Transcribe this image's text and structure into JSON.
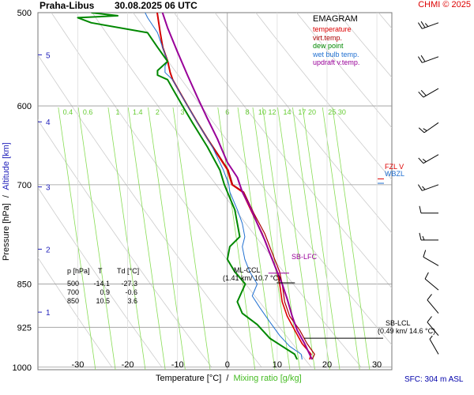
{
  "header": {
    "station": "Praha-Libus",
    "datetime": "30.08.2025 06 UTC",
    "credit": "CHMI © 2025"
  },
  "legend": {
    "title": "EMAGRAM",
    "items": [
      {
        "label": "temperature",
        "color": "#dd0000"
      },
      {
        "label": "virt.temp.",
        "color": "#aa0000"
      },
      {
        "label": "dew point",
        "color": "#008800"
      },
      {
        "label": "wet bulb temp.",
        "color": "#1f6fd1"
      },
      {
        "label": "updraft v.temp.",
        "color": "#990099"
      }
    ]
  },
  "axes": {
    "x_label_a": "Temperature [°C]",
    "x_sep": "/",
    "x_label_b": "Mixing ratio [g/kg]",
    "y_label_a": "Pressure [hPa]",
    "y_sep": "/",
    "y_label_b": "Altitude [km]",
    "sfc": "SFC: 304 m ASL"
  },
  "table": {
    "headers": [
      "p [hPa]",
      "T",
      "Td [°C]"
    ],
    "rows": [
      [
        "500",
        "-14.1",
        "-27.3"
      ],
      [
        "700",
        "0.9",
        "-0.6"
      ],
      [
        "850",
        "10.5",
        "3.6"
      ]
    ]
  },
  "annotations": {
    "fzl": "FZL V",
    "wbzl": "WBZL",
    "sb_lfc": "SB-LFC",
    "ml_ccl": "ML-CCL",
    "ml_ccl_detail": "(1.41 km/ 10.7 °C)",
    "sb_lcl": "SB-LCL",
    "sb_lcl_detail": "(0.49 km/ 14.6 °C)"
  },
  "chart_data": {
    "type": "line",
    "title": "Praha-Libus 30.08.2025 06 UTC",
    "xlabel": "Temperature [°C] / Mixing ratio [g/kg]",
    "ylabel": "Pressure [hPa] / Altitude [km]",
    "xlim": [
      -38,
      33
    ],
    "pressure_range_hpa": [
      1005,
      500
    ],
    "y_scale": "log",
    "grid": true,
    "legend_position": "top-right",
    "x_ticks": [
      -30,
      -20,
      -10,
      0,
      10,
      20,
      30
    ],
    "pressure_ticks": [
      500,
      600,
      700,
      850,
      925,
      1000
    ],
    "altitude_ticks_km": [
      {
        "km": "1",
        "p": 898
      },
      {
        "km": "2",
        "p": 794
      },
      {
        "km": "3",
        "p": 703
      },
      {
        "km": "4",
        "p": 619
      },
      {
        "km": "5",
        "p": 543
      }
    ],
    "mixing_ratio_labels_gkg": [
      "0.4",
      "0.6",
      "1",
      "1.4",
      "2",
      "3",
      "6",
      "8",
      "10",
      "12",
      "14",
      "17",
      "20",
      "25",
      "30"
    ],
    "mixing_ratio_label_x_c": [
      -32,
      -28,
      -22,
      -18,
      -14,
      -9,
      0,
      4,
      7,
      9,
      12,
      15,
      17,
      21,
      23
    ],
    "series": [
      {
        "name": "temperature",
        "color": "#dd0000",
        "points": [
          [
            16.5,
            985
          ],
          [
            16.8,
            975
          ],
          [
            15,
            955
          ],
          [
            13.5,
            930
          ],
          [
            12,
            905
          ],
          [
            11,
            880
          ],
          [
            10.5,
            850
          ],
          [
            10,
            830
          ],
          [
            8.5,
            800
          ],
          [
            7,
            770
          ],
          [
            5,
            740
          ],
          [
            3,
            710
          ],
          [
            0.9,
            700
          ],
          [
            0,
            680
          ],
          [
            -2,
            660
          ],
          [
            -4,
            640
          ],
          [
            -6,
            620
          ],
          [
            -8,
            600
          ],
          [
            -10,
            580
          ],
          [
            -11,
            570
          ],
          [
            -11.5,
            562
          ],
          [
            -12,
            550
          ],
          [
            -13,
            535
          ],
          [
            -13.5,
            520
          ],
          [
            -14.1,
            500
          ]
        ]
      },
      {
        "name": "virt.temp.",
        "color": "#aa0000",
        "points": [
          [
            17,
            985
          ],
          [
            17.5,
            975
          ],
          [
            16,
            955
          ],
          [
            14.5,
            930
          ],
          [
            12.5,
            905
          ],
          [
            11.5,
            880
          ],
          [
            11,
            850
          ],
          [
            10.5,
            830
          ],
          [
            9,
            800
          ],
          [
            7.5,
            770
          ],
          [
            5.3,
            740
          ],
          [
            3.3,
            710
          ],
          [
            1.1,
            700
          ],
          [
            0.2,
            680
          ],
          [
            -1.8,
            660
          ],
          [
            -3.9,
            640
          ],
          [
            -5.9,
            620
          ],
          [
            -7.9,
            600
          ],
          [
            -9.9,
            580
          ],
          [
            -10.9,
            570
          ],
          [
            -11.4,
            562
          ],
          [
            -11.9,
            550
          ],
          [
            -12.9,
            535
          ],
          [
            -13.4,
            520
          ],
          [
            -14,
            500
          ]
        ]
      },
      {
        "name": "dew point",
        "color": "#008800",
        "points": [
          [
            14,
            985
          ],
          [
            13.5,
            975
          ],
          [
            11,
            960
          ],
          [
            8.5,
            945
          ],
          [
            6,
            920
          ],
          [
            3,
            900
          ],
          [
            2,
            880
          ],
          [
            3.6,
            850
          ],
          [
            1.5,
            830
          ],
          [
            0,
            810
          ],
          [
            0.5,
            790
          ],
          [
            2.5,
            775
          ],
          [
            2,
            755
          ],
          [
            1.5,
            735
          ],
          [
            0,
            710
          ],
          [
            -0.6,
            700
          ],
          [
            -1.5,
            680
          ],
          [
            -4,
            650
          ],
          [
            -7,
            620
          ],
          [
            -9,
            600
          ],
          [
            -11,
            580
          ],
          [
            -12,
            570
          ],
          [
            -14,
            565
          ],
          [
            -14,
            560
          ],
          [
            -12,
            550
          ],
          [
            -14,
            535
          ],
          [
            -16,
            520
          ],
          [
            -27.3,
            510
          ],
          [
            -30,
            505
          ],
          [
            -22,
            503
          ],
          [
            -27.3,
            500
          ]
        ]
      },
      {
        "name": "wet bulb temp.",
        "color": "#1f6fd1",
        "points": [
          [
            15,
            985
          ],
          [
            14.8,
            975
          ],
          [
            12.5,
            960
          ],
          [
            10.5,
            940
          ],
          [
            8.5,
            915
          ],
          [
            6.5,
            890
          ],
          [
            5,
            870
          ],
          [
            6,
            850
          ],
          [
            4.5,
            830
          ],
          [
            3.5,
            810
          ],
          [
            3,
            790
          ],
          [
            3.5,
            775
          ],
          [
            3,
            755
          ],
          [
            2,
            735
          ],
          [
            0.5,
            710
          ],
          [
            0.3,
            700
          ],
          [
            -0.8,
            680
          ],
          [
            -3,
            650
          ],
          [
            -6,
            620
          ],
          [
            -8,
            600
          ],
          [
            -10,
            580
          ],
          [
            -11,
            570
          ],
          [
            -12.5,
            562
          ],
          [
            -12.5,
            555
          ],
          [
            -12,
            550
          ],
          [
            -13,
            535
          ],
          [
            -14,
            520
          ],
          [
            -16,
            505
          ],
          [
            -16.5,
            500
          ]
        ]
      },
      {
        "name": "updraft v.temp.",
        "color": "#990099",
        "points": [
          [
            17,
            985
          ],
          [
            15.5,
            955
          ],
          [
            14,
            930
          ],
          [
            13,
            905
          ],
          [
            12,
            875
          ],
          [
            11,
            850
          ],
          [
            10,
            830
          ],
          [
            8.5,
            800
          ],
          [
            7.5,
            780
          ],
          [
            6,
            755
          ],
          [
            4.5,
            730
          ],
          [
            3,
            710
          ],
          [
            2,
            690
          ],
          [
            0,
            670
          ],
          [
            -2,
            640
          ],
          [
            -4,
            615
          ],
          [
            -6,
            590
          ],
          [
            -8,
            565
          ],
          [
            -10,
            540
          ],
          [
            -12,
            515
          ],
          [
            -13,
            500
          ]
        ]
      }
    ],
    "wind_barbs": [
      {
        "p": 510,
        "dir_deg": 250,
        "speed_kt": 25
      },
      {
        "p": 545,
        "dir_deg": 250,
        "speed_kt": 20
      },
      {
        "p": 580,
        "dir_deg": 240,
        "speed_kt": 20
      },
      {
        "p": 620,
        "dir_deg": 235,
        "speed_kt": 15
      },
      {
        "p": 660,
        "dir_deg": 240,
        "speed_kt": 15
      },
      {
        "p": 700,
        "dir_deg": 250,
        "speed_kt": 15
      },
      {
        "p": 740,
        "dir_deg": 270,
        "speed_kt": 10
      },
      {
        "p": 780,
        "dir_deg": 270,
        "speed_kt": 15
      },
      {
        "p": 820,
        "dir_deg": 300,
        "speed_kt": 10
      },
      {
        "p": 860,
        "dir_deg": 310,
        "speed_kt": 10
      },
      {
        "p": 900,
        "dir_deg": 320,
        "speed_kt": 10
      },
      {
        "p": 940,
        "dir_deg": 320,
        "speed_kt": 10
      },
      {
        "p": 975,
        "dir_deg": 330,
        "speed_kt": 5
      }
    ],
    "levels": {
      "fzl_hpa": 692,
      "wbzl_hpa": 698,
      "sb_lfc": {
        "p": 832,
        "t": 9.5
      },
      "ml_ccl": {
        "p": 848,
        "t": 10.7
      },
      "sb_lcl": {
        "p": 945,
        "t": 14.6
      }
    }
  }
}
